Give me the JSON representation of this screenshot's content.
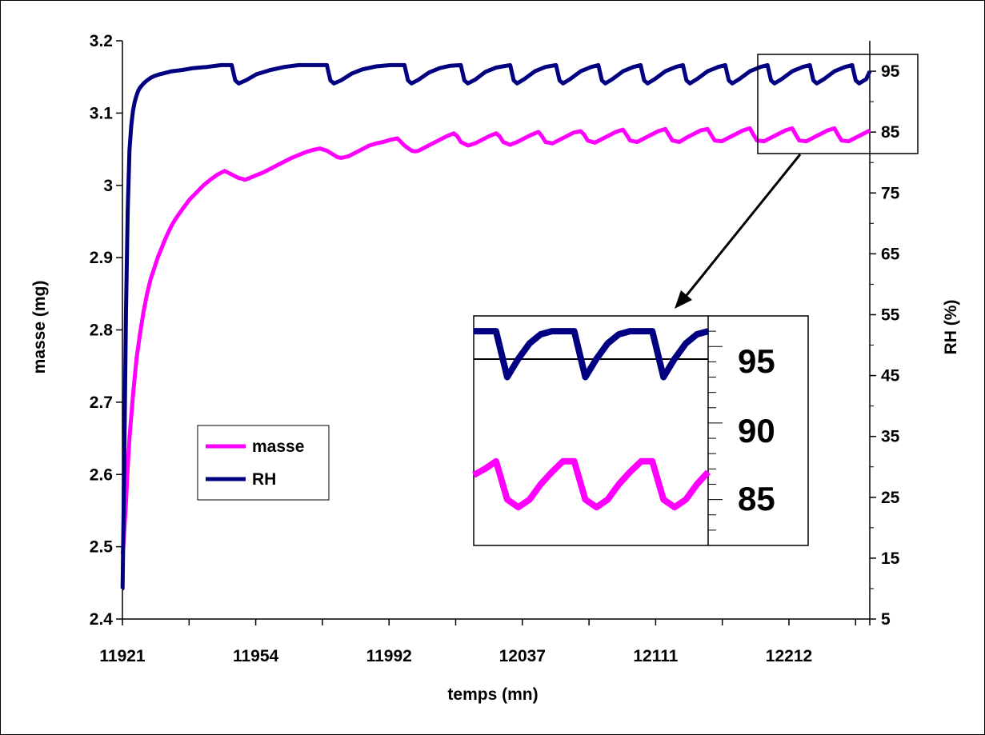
{
  "chart_data": {
    "type": "line",
    "xlabel": "temps (mn)",
    "ylabel": "masse (mg)",
    "y2label": "RH (%)",
    "x_tick_labels": [
      "11921",
      "11954",
      "11992",
      "12037",
      "12111",
      "12212"
    ],
    "ylim": [
      2.4,
      3.2
    ],
    "y_ticks": [
      "2.4",
      "2.5",
      "2.6",
      "2.7",
      "2.8",
      "2.9",
      "3",
      "3.1",
      "3.2"
    ],
    "y2lim": [
      5,
      100
    ],
    "y2_ticks": [
      "5",
      "15",
      "25",
      "35",
      "45",
      "55",
      "65",
      "75",
      "85",
      "95"
    ],
    "grid": false,
    "legend_position": "middle-left",
    "colors": {
      "masse": "#ff00ff",
      "RH": "#000080"
    },
    "series": [
      {
        "name": "masse",
        "axis": "left",
        "x_index": [
          0,
          0.05,
          0.25,
          0.5,
          1,
          1.5,
          2,
          3,
          4,
          5,
          6,
          7,
          8,
          9,
          10,
          11,
          12,
          13,
          14,
          15,
          17,
          19,
          21,
          23,
          25,
          27,
          29,
          31,
          33,
          34,
          34.5,
          35,
          36,
          38,
          40,
          42,
          44,
          46,
          48,
          50,
          52,
          54,
          56,
          58,
          60,
          61,
          62,
          64,
          66,
          68,
          70,
          72,
          74,
          76,
          78,
          80,
          82,
          83,
          84,
          86,
          88,
          90,
          92,
          94,
          95,
          96,
          98,
          100,
          102,
          104,
          106,
          107,
          108,
          110,
          112,
          114,
          116,
          118,
          119,
          120,
          122,
          124,
          126,
          128,
          130,
          131,
          132,
          134,
          136,
          138,
          140,
          142,
          143,
          144,
          146,
          148,
          150,
          152,
          154,
          155,
          156,
          158,
          160,
          162,
          164,
          166,
          167,
          168,
          170,
          172,
          174,
          176,
          178,
          179,
          180,
          182,
          184,
          186,
          188,
          190,
          191,
          192,
          194,
          196,
          198,
          200,
          202,
          203,
          204,
          206,
          208,
          210,
          212
        ],
        "values": [
          2.49,
          2.49,
          2.5,
          2.52,
          2.56,
          2.61,
          2.65,
          2.71,
          2.76,
          2.795,
          2.825,
          2.85,
          2.87,
          2.885,
          2.9,
          2.912,
          2.924,
          2.935,
          2.945,
          2.953,
          2.967,
          2.98,
          2.99,
          3.0,
          3.008,
          3.015,
          3.02,
          3.015,
          3.01,
          3.009,
          3.008,
          3.008,
          3.01,
          3.014,
          3.018,
          3.023,
          3.028,
          3.033,
          3.038,
          3.042,
          3.046,
          3.049,
          3.051,
          3.048,
          3.042,
          3.039,
          3.038,
          3.04,
          3.045,
          3.05,
          3.055,
          3.058,
          3.06,
          3.063,
          3.065,
          3.055,
          3.048,
          3.047,
          3.048,
          3.053,
          3.058,
          3.063,
          3.068,
          3.072,
          3.068,
          3.06,
          3.055,
          3.058,
          3.063,
          3.068,
          3.072,
          3.068,
          3.06,
          3.056,
          3.06,
          3.065,
          3.07,
          3.074,
          3.068,
          3.06,
          3.058,
          3.063,
          3.068,
          3.073,
          3.075,
          3.07,
          3.062,
          3.059,
          3.064,
          3.069,
          3.074,
          3.077,
          3.07,
          3.062,
          3.06,
          3.065,
          3.07,
          3.075,
          3.078,
          3.07,
          3.062,
          3.06,
          3.066,
          3.071,
          3.076,
          3.078,
          3.07,
          3.062,
          3.061,
          3.066,
          3.071,
          3.076,
          3.079,
          3.07,
          3.062,
          3.061,
          3.066,
          3.071,
          3.076,
          3.079,
          3.07,
          3.062,
          3.061,
          3.066,
          3.071,
          3.076,
          3.079,
          3.07,
          3.062,
          3.061,
          3.066,
          3.071,
          3.076
        ]
      },
      {
        "name": "RH",
        "axis": "right",
        "x_index": [
          0,
          0.05,
          0.5,
          1,
          1.5,
          2,
          2.5,
          3,
          3.5,
          4,
          4.5,
          5,
          6,
          7,
          8,
          9,
          10,
          12,
          14,
          17,
          20,
          24,
          28,
          31,
          32,
          33,
          35,
          38,
          42,
          46,
          50,
          54,
          58,
          59,
          60,
          62,
          65,
          68,
          72,
          76,
          80,
          81,
          82,
          84,
          87,
          90,
          93,
          96,
          97,
          98,
          100,
          103,
          106,
          110,
          111,
          112,
          114,
          117,
          120,
          123,
          124,
          125,
          127,
          130,
          133,
          135,
          136,
          137,
          139,
          142,
          145,
          147,
          148,
          149,
          151,
          154,
          157,
          159,
          160,
          161,
          163,
          166,
          169,
          171,
          172,
          173,
          175,
          178,
          181,
          183,
          184,
          185,
          187,
          190,
          193,
          195,
          196,
          197,
          199,
          202,
          205,
          207,
          208,
          209,
          211,
          212
        ],
        "values": [
          10,
          10,
          30,
          55,
          72,
          82,
          86,
          88.5,
          90,
          91,
          91.8,
          92.3,
          93,
          93.5,
          93.9,
          94.2,
          94.4,
          94.7,
          95,
          95.2,
          95.5,
          95.7,
          96,
          96,
          93.5,
          93,
          93.5,
          94.5,
          95.2,
          95.7,
          96,
          96,
          96,
          93.5,
          93,
          93.5,
          94.6,
          95.3,
          95.8,
          96,
          96,
          93.5,
          93,
          93.6,
          94.8,
          95.5,
          95.9,
          96,
          93.5,
          93,
          93.6,
          94.9,
          95.6,
          96,
          93.5,
          93,
          93.7,
          95,
          95.7,
          96,
          93.5,
          93,
          93.7,
          95,
          95.7,
          96,
          93.5,
          93,
          93.7,
          95,
          95.7,
          96,
          93.5,
          93,
          93.7,
          95,
          95.7,
          96,
          93.5,
          93,
          93.7,
          95,
          95.7,
          96,
          93.5,
          93,
          93.7,
          95,
          95.7,
          96,
          93.5,
          93,
          93.7,
          95,
          95.7,
          96,
          93.5,
          93,
          93.7,
          95,
          95.7,
          96,
          93.5,
          93,
          93.7,
          95
        ]
      }
    ],
    "inset": {
      "ylim": [
        82,
        97
      ],
      "y_tick_labels": [
        "95",
        "90",
        "85"
      ],
      "reference_line": 95,
      "rh_values": [
        96,
        96,
        96,
        93,
        94.2,
        95.2,
        95.8,
        96,
        96,
        96,
        93,
        94.2,
        95.2,
        95.8,
        96,
        96,
        96,
        93,
        94.2,
        95.2,
        95.8,
        96
      ],
      "masse_values": [
        86.6,
        87,
        87.5,
        85,
        84.5,
        85,
        86,
        86.8,
        87.5,
        87.5,
        85,
        84.5,
        85,
        86,
        86.8,
        87.5,
        87.5,
        85,
        84.5,
        85,
        86,
        86.8
      ]
    }
  }
}
